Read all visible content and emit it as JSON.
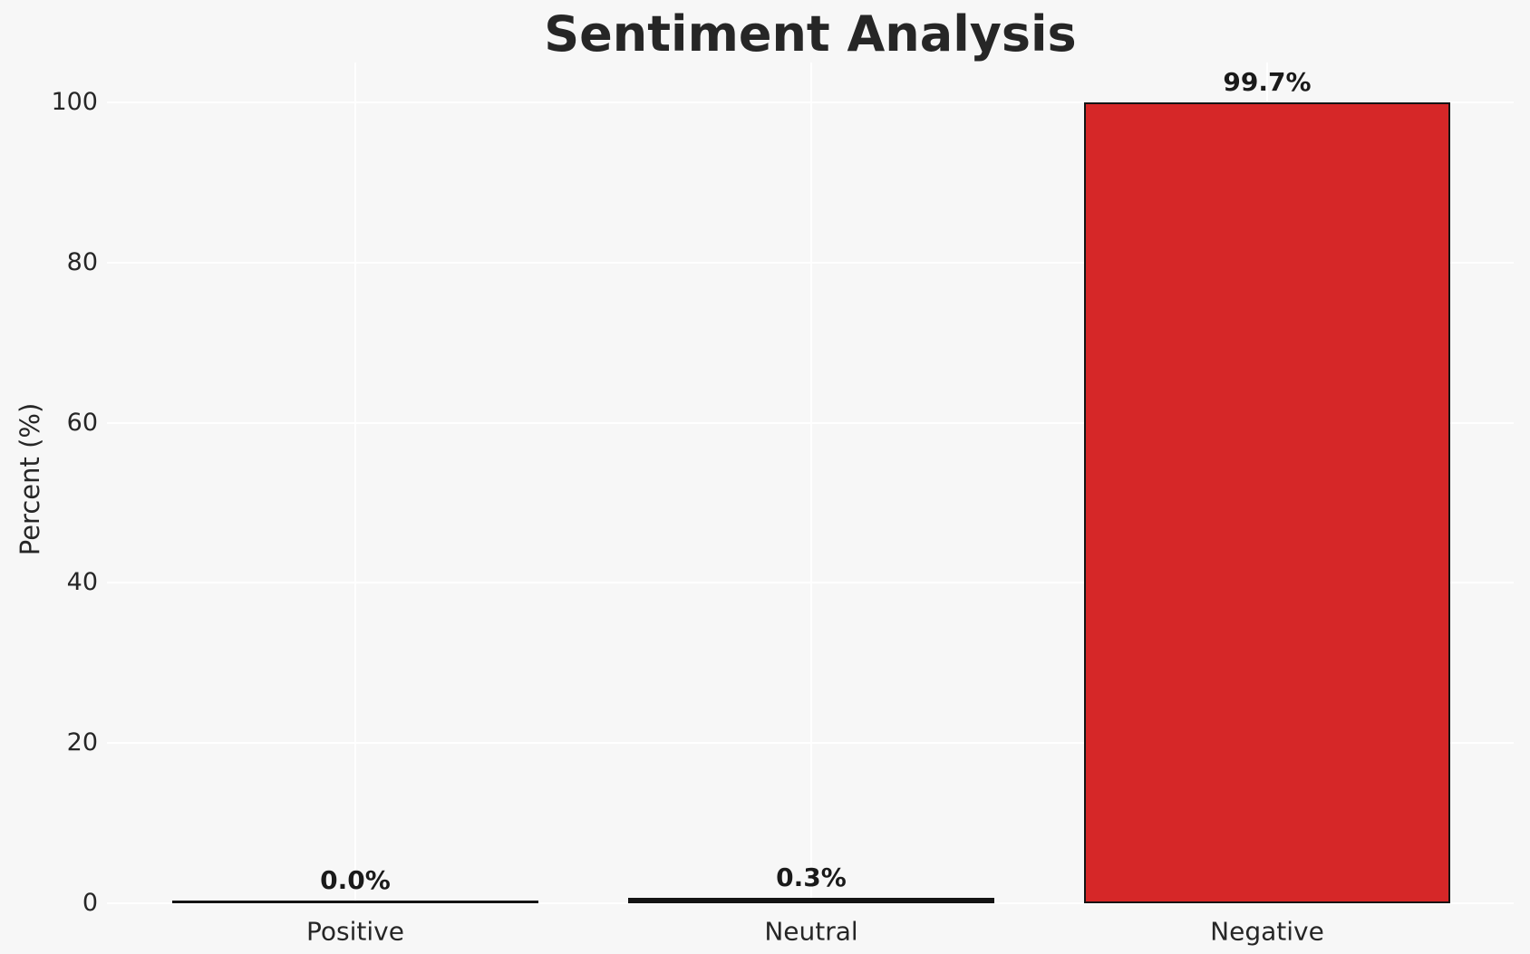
{
  "chart_data": {
    "type": "bar",
    "title": "Sentiment Analysis",
    "ylabel": "Percent (%)",
    "xlabel": "",
    "categories": [
      "Positive",
      "Neutral",
      "Negative"
    ],
    "values": [
      0.0,
      0.3,
      99.7
    ],
    "value_labels": [
      "0.0%",
      "0.3%",
      "99.7%"
    ],
    "yticks": [
      0,
      20,
      40,
      60,
      80,
      100
    ],
    "ylim": [
      0,
      105
    ],
    "grid": true,
    "legend": false,
    "bar_color": "#d62728",
    "bar_edge_color": "#141414",
    "background_color": "#f7f7f7",
    "grid_color": "#ffffff",
    "text_color": "#262626"
  }
}
